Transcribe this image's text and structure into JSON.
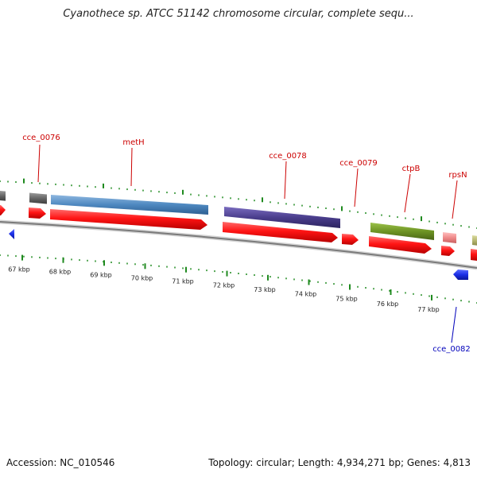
{
  "header": {
    "title": "Cyanothece sp. ATCC 51142 chromosome circular, complete sequ..."
  },
  "footer": {
    "accession_label": "Accession:",
    "accession_value": "NC_010546",
    "topology_label": "Topology:",
    "topology_value": "circular;",
    "length_label": "Length:",
    "length_value": "4,934,271 bp;",
    "genes_label": "Genes:",
    "genes_value": "4,813"
  },
  "colors": {
    "forward_gene": "#ff1414",
    "reverse_gene": "#1a2ee6",
    "tick": "#1f8a1f",
    "backbone": "#9a9a9a",
    "label_forward": "#cc0000",
    "label_reverse": "#0000bb"
  },
  "scale": {
    "unit": "kbp",
    "ticks": [
      "67 kbp",
      "68 kbp",
      "69 kbp",
      "70 kbp",
      "71 kbp",
      "72 kbp",
      "73 kbp",
      "74 kbp",
      "75 kbp",
      "76 kbp",
      "77 kbp"
    ]
  },
  "genes": [
    {
      "label": "cce_0076",
      "strand": "forward",
      "product_color": "#666666"
    },
    {
      "label": "metH",
      "strand": "forward",
      "product_color": "#4e88c0"
    },
    {
      "label": "cce_0078",
      "strand": "forward",
      "product_color": "#4a3e8c"
    },
    {
      "label": "cce_0079",
      "strand": "forward",
      "product_color": null
    },
    {
      "label": "ctpB",
      "strand": "forward",
      "product_color": "#6e9424"
    },
    {
      "label": "rpsN",
      "strand": "forward",
      "product_color": "#ef8a8a"
    },
    {
      "label": "cce_0082",
      "strand": "reverse",
      "product_color": null
    }
  ]
}
